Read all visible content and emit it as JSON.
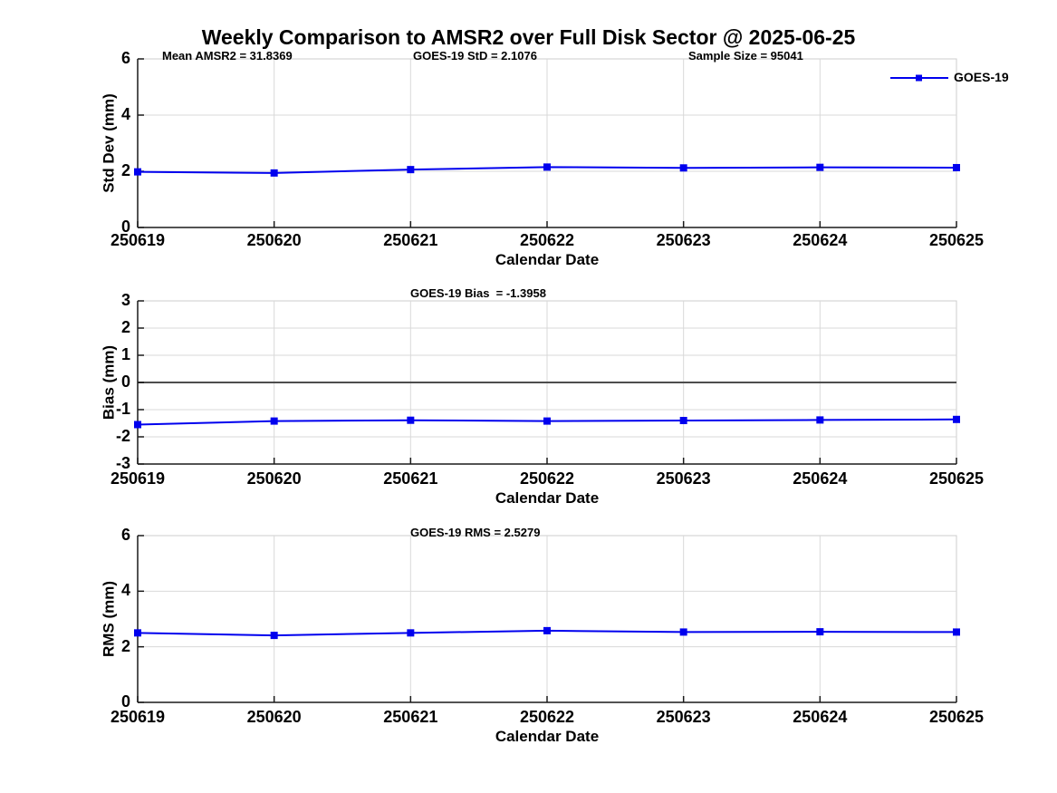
{
  "title": "Weekly Comparison to AMSR2 over Full Disk Sector @ 2025-06-25",
  "legend": {
    "label": "GOES-19"
  },
  "colors": {
    "line": "#0000EE",
    "marker": "#0000EE",
    "grid": "#D9D9D9",
    "box": "#CCCCCC",
    "axis": "#1A1A1A",
    "zero_line": "#4D4D4D",
    "text": "#000000",
    "background": "#FFFFFF"
  },
  "chart_data": [
    {
      "type": "line",
      "annotations": [
        "Mean AMSR2 = 31.8369",
        "GOES-19 StD = 2.1076",
        "Sample Size = 95041"
      ],
      "categories": [
        "250619",
        "250620",
        "250621",
        "250622",
        "250623",
        "250624",
        "250625"
      ],
      "series": [
        {
          "name": "GOES-19",
          "values": [
            1.98,
            1.94,
            2.06,
            2.15,
            2.12,
            2.14,
            2.13
          ]
        }
      ],
      "xlabel": "Calendar Date",
      "ylabel": "Std Dev (mm)",
      "ylim": [
        0,
        6
      ],
      "yticks": [
        0,
        2,
        4,
        6
      ],
      "grid": true,
      "zero_line": false,
      "legend": "GOES-19"
    },
    {
      "type": "line",
      "annotations": [
        "GOES-19 Bias  = -1.3958"
      ],
      "categories": [
        "250619",
        "250620",
        "250621",
        "250622",
        "250623",
        "250624",
        "250625"
      ],
      "series": [
        {
          "name": "GOES-19",
          "values": [
            -1.55,
            -1.42,
            -1.39,
            -1.42,
            -1.4,
            -1.38,
            -1.36
          ]
        }
      ],
      "xlabel": "Calendar Date",
      "ylabel": "Bias (mm)",
      "ylim": [
        -3,
        3
      ],
      "yticks": [
        -3,
        -2,
        -1,
        0,
        1,
        2,
        3
      ],
      "grid": true,
      "zero_line": true,
      "legend": "GOES-19"
    },
    {
      "type": "line",
      "annotations": [
        "GOES-19 RMS = 2.5279"
      ],
      "categories": [
        "250619",
        "250620",
        "250621",
        "250622",
        "250623",
        "250624",
        "250625"
      ],
      "series": [
        {
          "name": "GOES-19",
          "values": [
            2.5,
            2.41,
            2.5,
            2.58,
            2.53,
            2.54,
            2.53
          ]
        }
      ],
      "xlabel": "Calendar Date",
      "ylabel": "RMS (mm)",
      "ylim": [
        0,
        6
      ],
      "yticks": [
        0,
        2,
        4,
        6
      ],
      "grid": true,
      "zero_line": false,
      "legend": "GOES-19"
    }
  ]
}
